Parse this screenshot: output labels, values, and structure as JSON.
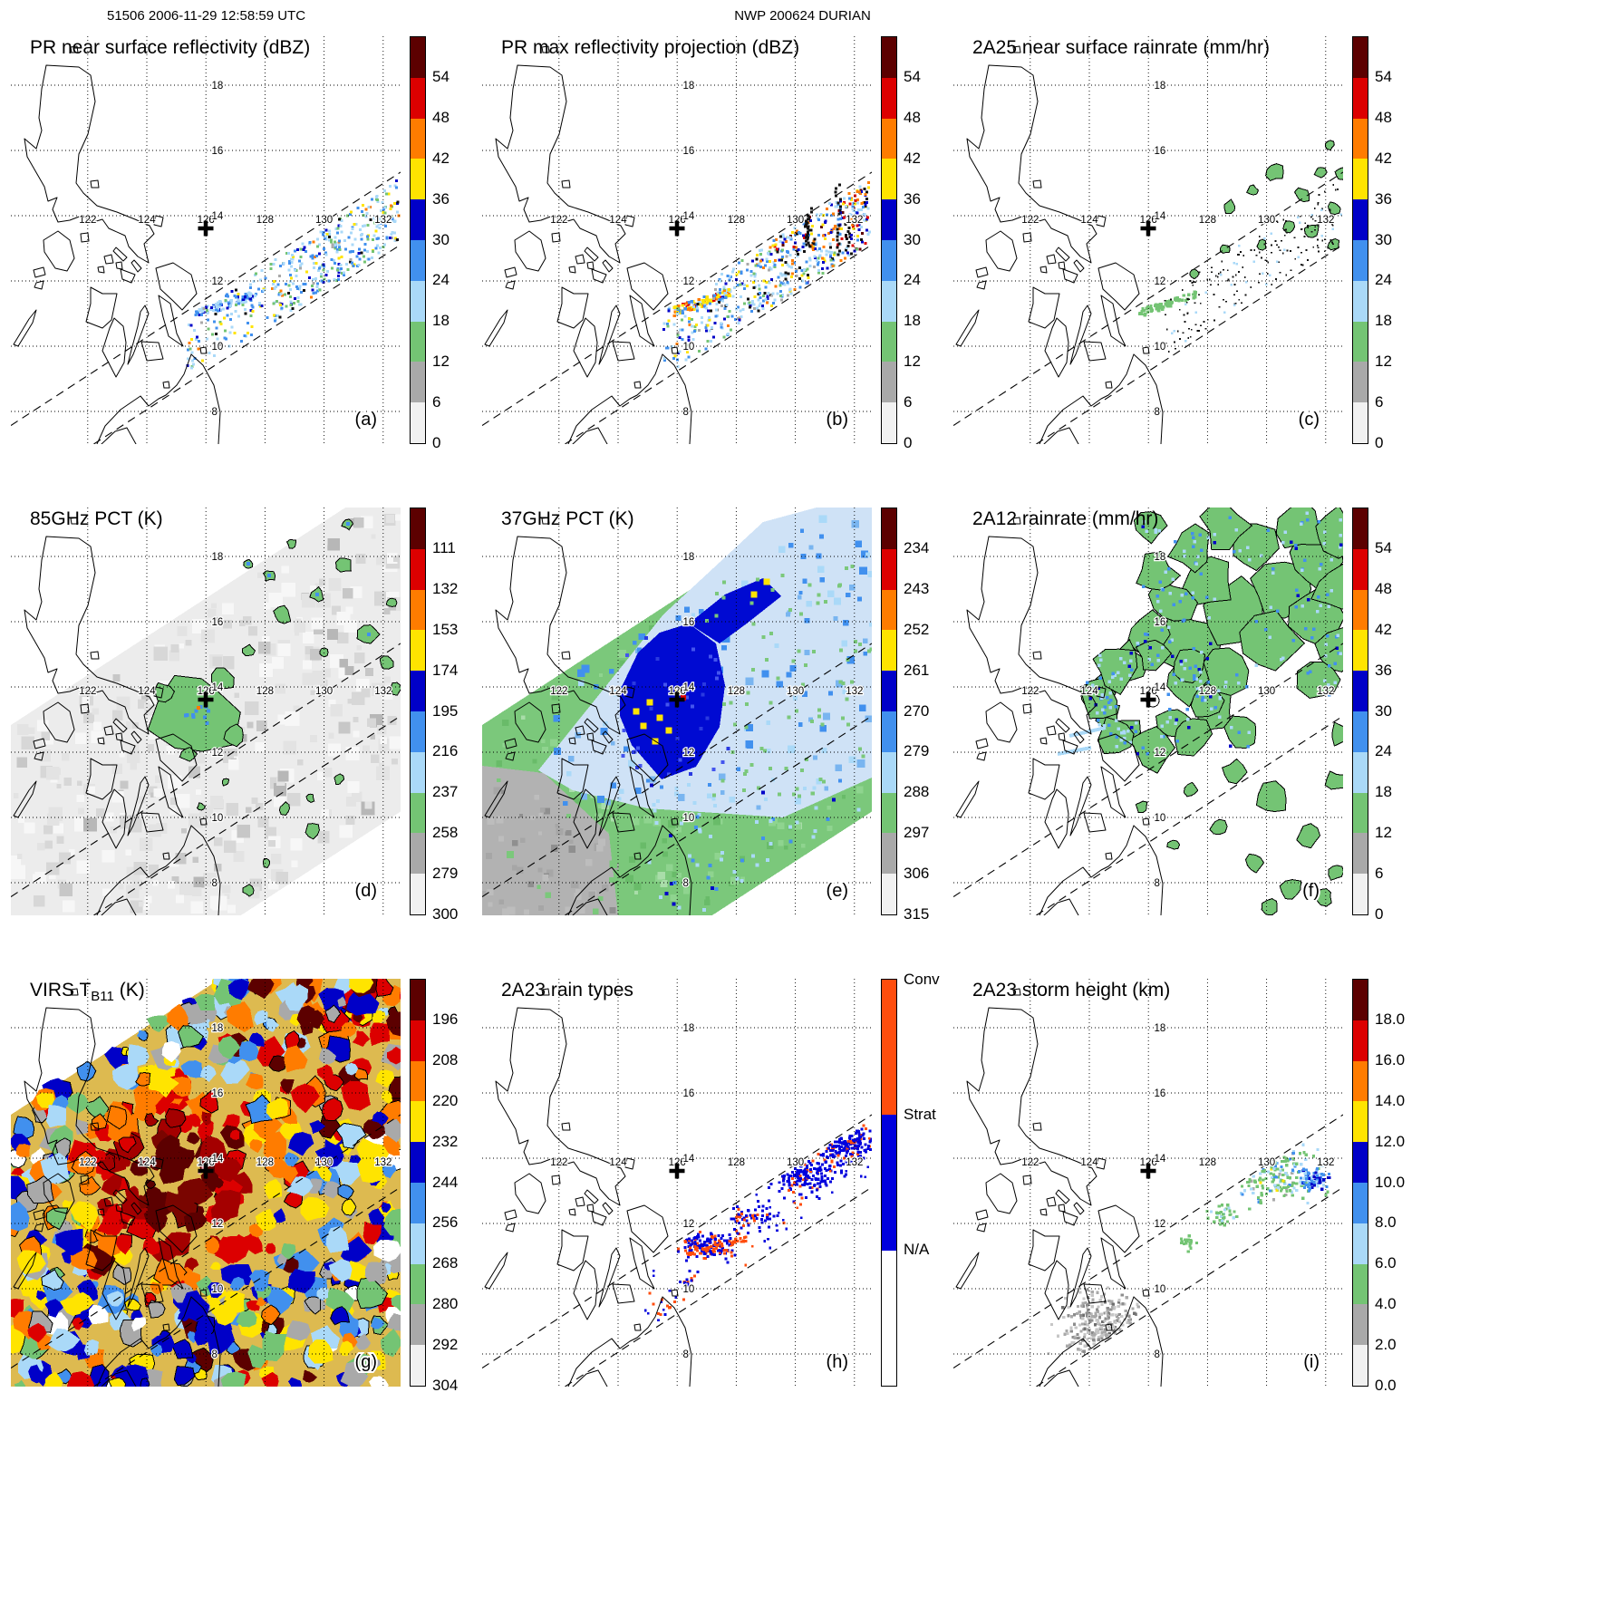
{
  "header": {
    "left": "51506 2006-11-29 12:58:59 UTC",
    "center": "NWP 200624 DURIAN"
  },
  "map": {
    "lon_labels": [
      "122",
      "124",
      "126",
      "128",
      "130",
      "132"
    ],
    "lat_labels": [
      "18",
      "16",
      "14",
      "12",
      "10",
      "8"
    ]
  },
  "palette": {
    "maroon": "#5c0000",
    "red": "#dc0000",
    "orange": "#ff7c00",
    "yellow": "#ffe400",
    "blue": "#0000c8",
    "medblue": "#4190ee",
    "lightblue": "#aad9f8",
    "green": "#74c474",
    "gray": "#a9a9a9",
    "lightgray": "#f1f1f1",
    "conv": "#ff4d0d",
    "strat": "#0000dd",
    "white": "#ffffff",
    "black": "#111111"
  },
  "colorbar_colors": [
    "#5c0000",
    "#dc0000",
    "#ff7c00",
    "#ffe400",
    "#0000c8",
    "#4190ee",
    "#aad9f8",
    "#74c474",
    "#a9a9a9",
    "#f1f1f1"
  ],
  "panels": [
    {
      "key": "a",
      "title": "PR near surface reflectivity (dBZ)",
      "title_sub": "",
      "title_rest": "",
      "letter": "(a)",
      "pattern": "refl_a",
      "colorbar": {
        "kind": "seq",
        "labels": [
          "54",
          "48",
          "42",
          "36",
          "30",
          "24",
          "18",
          "12",
          "6",
          "0"
        ]
      }
    },
    {
      "key": "b",
      "title": "PR max reflectivity projection (dBZ)",
      "title_sub": "",
      "title_rest": "",
      "letter": "(b)",
      "pattern": "refl_b",
      "colorbar": {
        "kind": "seq",
        "labels": [
          "54",
          "48",
          "42",
          "36",
          "30",
          "24",
          "18",
          "12",
          "6",
          "0"
        ]
      }
    },
    {
      "key": "c",
      "title": "2A25 near surface rainrate (mm/hr)",
      "title_sub": "",
      "title_rest": "",
      "letter": "(c)",
      "pattern": "rain_c",
      "colorbar": {
        "kind": "seq",
        "labels": [
          "54",
          "48",
          "42",
          "36",
          "30",
          "24",
          "18",
          "12",
          "6",
          "0"
        ]
      }
    },
    {
      "key": "d",
      "title": "85GHz PCT (K)",
      "title_sub": "",
      "title_rest": "",
      "letter": "(d)",
      "pattern": "pct85",
      "colorbar": {
        "kind": "seq",
        "labels": [
          "111",
          "132",
          "153",
          "174",
          "195",
          "216",
          "237",
          "258",
          "279",
          "300"
        ]
      }
    },
    {
      "key": "e",
      "title": "37GHz PCT (K)",
      "title_sub": "",
      "title_rest": "",
      "letter": "(e)",
      "pattern": "pct37",
      "colorbar": {
        "kind": "seq",
        "labels": [
          "234",
          "243",
          "252",
          "261",
          "270",
          "279",
          "288",
          "297",
          "306",
          "315"
        ]
      }
    },
    {
      "key": "f",
      "title": "2A12 rainrate (mm/hr)",
      "title_sub": "",
      "title_rest": "",
      "letter": "(f)",
      "pattern": "rain_f",
      "colorbar": {
        "kind": "seq",
        "labels": [
          "54",
          "48",
          "42",
          "36",
          "30",
          "24",
          "18",
          "12",
          "6",
          "0"
        ]
      }
    },
    {
      "key": "g",
      "title": "VIRS T",
      "title_sub": "B11",
      "title_rest": " (K)",
      "letter": "(g)",
      "pattern": "virs",
      "colorbar": {
        "kind": "seq",
        "labels": [
          "196",
          "208",
          "220",
          "232",
          "244",
          "256",
          "268",
          "280",
          "292",
          "304"
        ]
      }
    },
    {
      "key": "h",
      "title": "2A23 rain types",
      "title_sub": "",
      "title_rest": "",
      "letter": "(h)",
      "pattern": "raintype",
      "colorbar": {
        "kind": "raintype",
        "segments": [
          {
            "label": "Conv",
            "color": "#ff4d0d"
          },
          {
            "label": "Strat",
            "color": "#0000dd"
          },
          {
            "label": "N/A",
            "color": "#ffffff"
          }
        ]
      }
    },
    {
      "key": "i",
      "title": "2A23 storm height (km)",
      "title_sub": "",
      "title_rest": "",
      "letter": "(i)",
      "pattern": "height",
      "colorbar": {
        "kind": "seq",
        "labels": [
          "18.0",
          "16.0",
          "14.0",
          "12.0",
          "10.0",
          "8.0",
          "6.0",
          "4.0",
          "2.0",
          "0.0"
        ]
      }
    }
  ]
}
